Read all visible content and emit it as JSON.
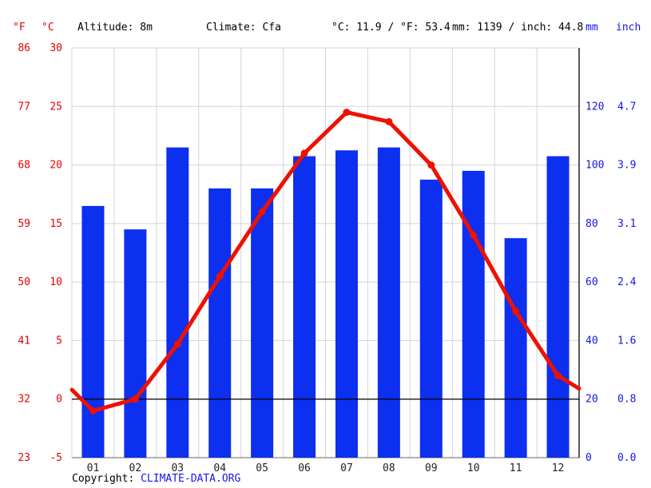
{
  "header": {
    "fahrenheit_axis_label": "°F",
    "celsius_axis_label": "°C",
    "altitude": "Altitude: 8m",
    "climate": "Climate: Cfa",
    "temperature_summary": "°C: 11.9 / °F: 53.4",
    "precipitation_summary": "mm: 1139 / inch: 44.8",
    "mm_axis_label": "mm",
    "inch_axis_label": "inch"
  },
  "footer": {
    "copyright_prefix": "Copyright: ",
    "copyright_link": "CLIMATE-DATA.ORG"
  },
  "colors": {
    "bar_blue": "#0c2ff0",
    "line_red": "#ee1100",
    "axis_red": "#e60000",
    "axis_blue": "#1616e8",
    "grid": "#d4d4d4",
    "zero_line": "#000000",
    "month_label": "#222222",
    "plot_right_border": "#000000",
    "plot_bottom_border": "#666666"
  },
  "chart_data": {
    "type": "bar",
    "subtype": "climate chart: precipitation bars + temperature line",
    "categories": [
      "01",
      "02",
      "03",
      "04",
      "05",
      "06",
      "07",
      "08",
      "09",
      "10",
      "11",
      "12"
    ],
    "series": [
      {
        "name": "Precipitation (mm)",
        "kind": "bar",
        "values": [
          86,
          78,
          106,
          92,
          92,
          103,
          105,
          106,
          95,
          98,
          75,
          103
        ]
      },
      {
        "name": "Temperature (°C)",
        "kind": "line",
        "values": [
          -1,
          0,
          4.7,
          10.5,
          16,
          21,
          24.5,
          23.7,
          20,
          14,
          7.5,
          2
        ],
        "edge_start": 0.8,
        "edge_end": 0.9
      }
    ],
    "axes": {
      "left_celsius_ticks": [
        -5,
        0,
        5,
        10,
        15,
        20,
        25,
        30
      ],
      "left_fahrenheit_ticks": [
        23,
        32,
        41,
        50,
        59,
        68,
        77,
        86
      ],
      "right_mm_ticks": [
        0,
        20,
        40,
        60,
        80,
        100,
        120
      ],
      "right_inch_ticks": [
        "0.0",
        "0.8",
        "1.6",
        "2.4",
        "3.1",
        "3.9",
        "4.7"
      ],
      "celsius_range": [
        -5,
        30
      ],
      "mm_per_gridline": 20,
      "mm_range_visible": [
        0,
        140
      ]
    },
    "grid": true,
    "legend": "none",
    "title": "",
    "xlabel": "",
    "ylabel": ""
  }
}
